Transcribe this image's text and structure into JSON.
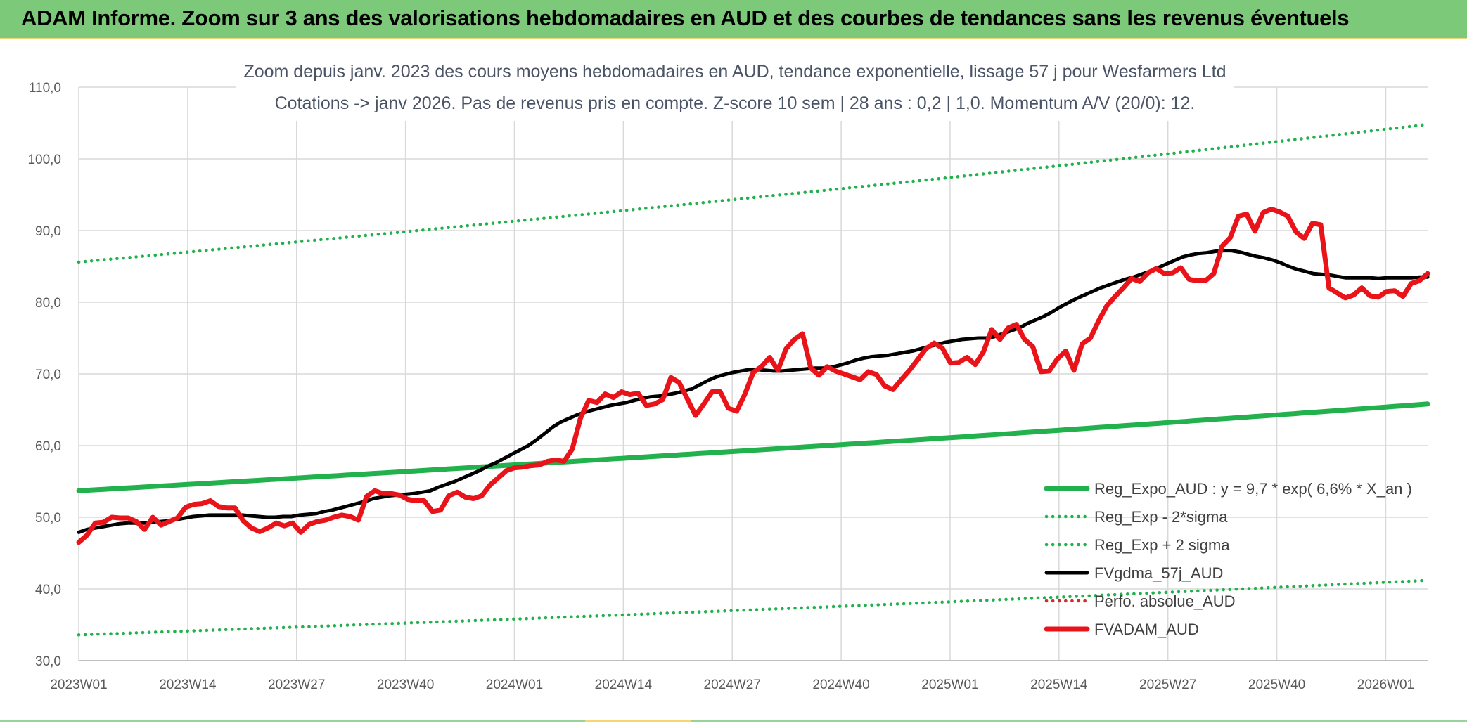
{
  "banner": {
    "title": "ADAM Informe. Zoom sur 3 ans des valorisations hebdomadaires en AUD et des courbes de tendances sans les revenus éventuels"
  },
  "chart_data": {
    "type": "line",
    "title_line1": "Zoom depuis janv. 2023 des cours moyens hebdomadaires en AUD, tendance exponentielle, lissage 57 j pour Wesfarmers Ltd",
    "title_line2": "Cotations -> janv 2026. Pas de revenus pris en compte. Z-score 10 sem | 28 ans : 0,2 | 1,0. Momentum A/V (20/0): 12.",
    "ylim": [
      30,
      110
    ],
    "y_ticks": [
      "30,0",
      "40,0",
      "50,0",
      "60,0",
      "70,0",
      "80,0",
      "90,0",
      "100,0",
      "110,0"
    ],
    "x_ticks": [
      "2023W01",
      "2023W14",
      "2023W27",
      "2023W40",
      "2024W01",
      "2024W14",
      "2024W27",
      "2024W40",
      "2025W01",
      "2025W14",
      "2025W27",
      "2025W40",
      "2026W01"
    ],
    "grid": true,
    "legend_position": "bottom-right",
    "week_count": 162,
    "series": [
      {
        "name": "Reg_Expo_AUD : y = 9,7 * exp( 6,6% *  X_an )",
        "color": "#22b14c",
        "style": "solid-thick",
        "values": [
          53.7,
          57.3,
          61.1,
          65.8
        ]
      },
      {
        "name": "Reg_Exp - 2*sigma",
        "color": "#22b14c",
        "style": "dotted",
        "values": [
          33.6,
          35.8,
          38.2,
          41.2
        ]
      },
      {
        "name": "Reg_Exp + 2 sigma",
        "color": "#22b14c",
        "style": "dotted",
        "values": [
          85.6,
          91.3,
          97.4,
          104.8
        ]
      },
      {
        "name": "FVgdma_57j_AUD",
        "color": "#000000",
        "style": "solid",
        "values": [
          47.9,
          48.3,
          48.5,
          48.7,
          48.9,
          49.1,
          49.2,
          49.2,
          49.2,
          49.3,
          49.4,
          49.5,
          49.7,
          49.9,
          50.1,
          50.2,
          50.3,
          50.3,
          50.3,
          50.3,
          50.3,
          50.2,
          50.1,
          50.0,
          50.0,
          50.1,
          50.1,
          50.3,
          50.4,
          50.5,
          50.8,
          51.0,
          51.3,
          51.6,
          51.9,
          52.2,
          52.6,
          52.8,
          53.0,
          53.1,
          53.2,
          53.3,
          53.5,
          53.7,
          54.2,
          54.6,
          55.0,
          55.5,
          56.0,
          56.5,
          57.1,
          57.6,
          58.2,
          58.8,
          59.4,
          60.0,
          60.8,
          61.7,
          62.6,
          63.3,
          63.8,
          64.3,
          64.7,
          65.0,
          65.3,
          65.6,
          65.8,
          66.0,
          66.3,
          66.6,
          66.8,
          66.9,
          67.1,
          67.3,
          67.6,
          67.9,
          68.5,
          69.1,
          69.6,
          69.9,
          70.2,
          70.4,
          70.6,
          70.6,
          70.5,
          70.4,
          70.4,
          70.5,
          70.6,
          70.7,
          70.8,
          70.8,
          70.9,
          71.2,
          71.5,
          71.9,
          72.2,
          72.4,
          72.5,
          72.6,
          72.8,
          73.0,
          73.2,
          73.5,
          73.8,
          74.1,
          74.4,
          74.6,
          74.8,
          74.9,
          75.0,
          75.0,
          75.2,
          75.6,
          76.0,
          76.4,
          77.0,
          77.5,
          78.0,
          78.6,
          79.3,
          79.9,
          80.5,
          81.0,
          81.5,
          82.0,
          82.4,
          82.8,
          83.2,
          83.5,
          83.9,
          84.3,
          84.8,
          85.3,
          85.8,
          86.3,
          86.6,
          86.8,
          86.9,
          87.1,
          87.2,
          87.2,
          87.0,
          86.7,
          86.4,
          86.2,
          85.9,
          85.5,
          85.0,
          84.6,
          84.3,
          84.0,
          83.9,
          83.8,
          83.6,
          83.4,
          83.4,
          83.4,
          83.4,
          83.3,
          83.4,
          83.4,
          83.4,
          83.4,
          83.5,
          83.5
        ]
      },
      {
        "name": "Perfo. absolue_AUD",
        "color": "#d62a2a",
        "style": "dotted",
        "values": []
      },
      {
        "name": "FVADAM_AUD",
        "color": "#e8141a",
        "style": "solid-thick",
        "values": [
          46.5,
          47.5,
          49.2,
          49.3,
          50.0,
          49.9,
          49.9,
          49.4,
          48.3,
          50.0,
          48.9,
          49.4,
          49.9,
          51.4,
          51.8,
          51.9,
          52.3,
          51.5,
          51.3,
          51.3,
          49.5,
          48.5,
          48.0,
          48.5,
          49.2,
          48.8,
          49.2,
          47.9,
          49.0,
          49.4,
          49.6,
          50.0,
          50.3,
          50.1,
          49.6,
          52.9,
          53.7,
          53.3,
          53.3,
          53.1,
          52.5,
          52.3,
          52.3,
          50.8,
          51.0,
          53.0,
          53.5,
          52.8,
          52.6,
          53.0,
          54.5,
          55.5,
          56.5,
          56.9,
          57.0,
          57.2,
          57.3,
          57.8,
          58.0,
          57.8,
          59.5,
          63.8,
          66.3,
          66.0,
          67.2,
          66.7,
          67.5,
          67.1,
          67.3,
          65.6,
          65.8,
          66.4,
          69.5,
          68.8,
          66.5,
          64.2,
          65.8,
          67.5,
          67.5,
          65.2,
          64.8,
          67.2,
          70.2,
          71.0,
          72.3,
          70.5,
          73.5,
          74.8,
          75.6,
          70.8,
          69.8,
          71.0,
          70.4,
          70.0,
          69.6,
          69.2,
          70.3,
          69.9,
          68.3,
          67.8,
          69.2,
          70.5,
          72.0,
          73.5,
          74.3,
          73.6,
          71.5,
          71.6,
          72.3,
          71.3,
          73.1,
          76.2,
          74.8,
          76.4,
          76.9,
          74.8,
          73.8,
          70.3,
          70.4,
          72.1,
          73.2,
          70.5,
          74.2,
          75.0,
          77.4,
          79.5,
          80.8,
          82.0,
          83.3,
          82.9,
          84.1,
          84.7,
          84.0,
          84.1,
          84.8,
          83.2,
          83.0,
          83.0,
          84.0,
          87.8,
          89.0,
          92.0,
          92.3,
          89.9,
          92.5,
          93.0,
          92.6,
          92.0,
          89.8,
          88.9,
          91.0,
          90.8,
          82.0,
          81.3,
          80.6,
          81.0,
          82.0,
          80.9,
          80.7,
          81.5,
          81.6,
          80.8,
          82.6,
          83.0,
          84.0
        ]
      }
    ]
  }
}
